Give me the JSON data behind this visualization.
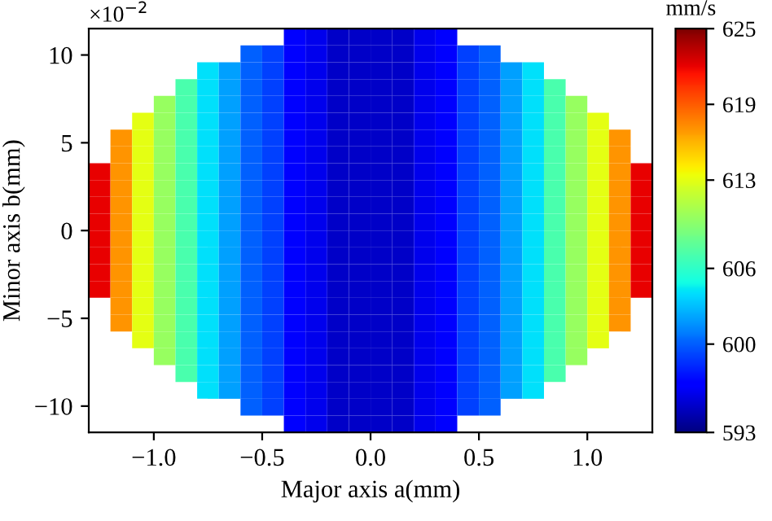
{
  "chart_data": {
    "type": "heatmap",
    "xlabel": "Major axis a(mm)",
    "ylabel": "Minor axis b(mm)",
    "clabel": "mm/s",
    "annotations": [
      "×10$^{−2}$"
    ],
    "x": [
      -1.25,
      -1.15,
      -1.05,
      -0.95,
      -0.85,
      -0.75,
      -0.65,
      -0.55,
      -0.45,
      -0.35,
      -0.25,
      -0.15,
      -0.05,
      0.05,
      0.15,
      0.25,
      0.35,
      0.45,
      0.55,
      0.65,
      0.75,
      0.85,
      0.95,
      1.05,
      1.15,
      1.25
    ],
    "xlim": [
      -1.3,
      1.3
    ],
    "xticks": [
      {
        "value": -1.0,
        "label": "−1.0"
      },
      {
        "value": -0.5,
        "label": "−0.5"
      },
      {
        "value": 0.0,
        "label": "0.0"
      },
      {
        "value": 0.5,
        "label": "0.5"
      },
      {
        "value": 1.0,
        "label": "1.0"
      }
    ],
    "ylim": [
      -11.5,
      11.5
    ],
    "yticks": [
      -10,
      -5,
      0,
      5,
      10
    ],
    "clim": [
      593,
      625
    ],
    "cticks": [
      593,
      600,
      606,
      613,
      619,
      625
    ],
    "cells": [
      [
        null,
        null,
        null,
        null,
        null,
        null,
        null,
        null,
        null,
        597,
        596,
        595,
        595,
        595,
        595,
        596,
        597,
        null,
        null,
        null,
        null,
        null,
        null,
        null,
        null,
        null
      ],
      [
        null,
        null,
        null,
        null,
        null,
        null,
        null,
        600,
        599,
        597,
        596,
        595,
        595,
        595,
        595,
        596,
        597,
        599,
        600,
        null,
        null,
        null,
        null,
        null,
        null,
        null
      ],
      [
        null,
        null,
        null,
        null,
        null,
        604,
        602,
        600,
        599,
        597,
        596,
        595,
        595,
        595,
        595,
        596,
        597,
        599,
        600,
        602,
        604,
        null,
        null,
        null,
        null,
        null
      ],
      [
        null,
        null,
        null,
        null,
        607,
        604,
        602,
        600,
        599,
        597,
        596,
        595,
        595,
        595,
        595,
        596,
        597,
        599,
        600,
        602,
        604,
        607,
        null,
        null,
        null,
        null
      ],
      [
        null,
        null,
        null,
        610,
        607,
        604,
        602,
        600,
        599,
        597,
        596,
        595,
        595,
        595,
        595,
        596,
        597,
        599,
        600,
        602,
        604,
        607,
        610,
        null,
        null,
        null
      ],
      [
        null,
        null,
        613,
        610,
        607,
        604,
        602,
        600,
        599,
        597,
        596,
        595,
        595,
        595,
        595,
        596,
        597,
        599,
        600,
        602,
        604,
        607,
        610,
        613,
        null,
        null
      ],
      [
        null,
        617,
        613,
        610,
        607,
        604,
        602,
        600,
        599,
        597,
        596,
        595,
        595,
        595,
        595,
        596,
        597,
        599,
        600,
        602,
        604,
        607,
        610,
        613,
        617,
        null
      ],
      [
        null,
        617,
        613,
        610,
        607,
        604,
        602,
        600,
        599,
        597,
        596,
        595,
        595,
        595,
        595,
        596,
        597,
        599,
        600,
        602,
        604,
        607,
        610,
        613,
        617,
        null
      ],
      [
        622,
        617,
        613,
        610,
        607,
        604,
        602,
        600,
        599,
        597,
        596,
        595,
        595,
        595,
        595,
        596,
        597,
        599,
        600,
        602,
        604,
        607,
        610,
        613,
        617,
        622
      ],
      [
        622,
        617,
        613,
        610,
        607,
        604,
        602,
        600,
        599,
        597,
        596,
        595,
        595,
        595,
        595,
        596,
        597,
        599,
        600,
        602,
        604,
        607,
        610,
        613,
        617,
        622
      ],
      [
        622,
        617,
        613,
        610,
        607,
        604,
        602,
        600,
        599,
        597,
        596,
        595,
        595,
        595,
        595,
        596,
        597,
        599,
        600,
        602,
        604,
        607,
        610,
        613,
        617,
        622
      ],
      [
        622,
        617,
        613,
        610,
        607,
        604,
        602,
        600,
        599,
        597,
        596,
        595,
        595,
        595,
        595,
        596,
        597,
        599,
        600,
        602,
        604,
        607,
        610,
        613,
        617,
        622
      ],
      [
        622,
        617,
        613,
        610,
        607,
        604,
        602,
        600,
        599,
        597,
        596,
        595,
        595,
        595,
        595,
        596,
        597,
        599,
        600,
        602,
        604,
        607,
        610,
        613,
        617,
        622
      ],
      [
        622,
        617,
        613,
        610,
        607,
        604,
        602,
        600,
        599,
        597,
        596,
        595,
        595,
        595,
        595,
        596,
        597,
        599,
        600,
        602,
        604,
        607,
        610,
        613,
        617,
        622
      ],
      [
        622,
        617,
        613,
        610,
        607,
        604,
        602,
        600,
        599,
        597,
        596,
        595,
        595,
        595,
        595,
        596,
        597,
        599,
        600,
        602,
        604,
        607,
        610,
        613,
        617,
        622
      ],
      [
        622,
        617,
        613,
        610,
        607,
        604,
        602,
        600,
        599,
        597,
        596,
        595,
        595,
        595,
        595,
        596,
        597,
        599,
        600,
        602,
        604,
        607,
        610,
        613,
        617,
        622
      ],
      [
        null,
        617,
        613,
        610,
        607,
        604,
        602,
        600,
        599,
        597,
        596,
        595,
        595,
        595,
        595,
        596,
        597,
        599,
        600,
        602,
        604,
        607,
        610,
        613,
        617,
        null
      ],
      [
        null,
        617,
        613,
        610,
        607,
        604,
        602,
        600,
        599,
        597,
        596,
        595,
        595,
        595,
        595,
        596,
        597,
        599,
        600,
        602,
        604,
        607,
        610,
        613,
        617,
        null
      ],
      [
        null,
        null,
        613,
        610,
        607,
        604,
        602,
        600,
        599,
        597,
        596,
        595,
        595,
        595,
        595,
        596,
        597,
        599,
        600,
        602,
        604,
        607,
        610,
        613,
        null,
        null
      ],
      [
        null,
        null,
        null,
        610,
        607,
        604,
        602,
        600,
        599,
        597,
        596,
        595,
        595,
        595,
        595,
        596,
        597,
        599,
        600,
        602,
        604,
        607,
        610,
        null,
        null,
        null
      ],
      [
        null,
        null,
        null,
        null,
        607,
        604,
        602,
        600,
        599,
        597,
        596,
        595,
        595,
        595,
        595,
        596,
        597,
        599,
        600,
        602,
        604,
        607,
        null,
        null,
        null,
        null
      ],
      [
        null,
        null,
        null,
        null,
        null,
        604,
        602,
        600,
        599,
        597,
        596,
        595,
        595,
        595,
        595,
        596,
        597,
        599,
        600,
        602,
        604,
        null,
        null,
        null,
        null,
        null
      ],
      [
        null,
        null,
        null,
        null,
        null,
        null,
        null,
        600,
        599,
        597,
        596,
        595,
        595,
        595,
        595,
        596,
        597,
        599,
        600,
        null,
        null,
        null,
        null,
        null,
        null,
        null
      ],
      [
        null,
        null,
        null,
        null,
        null,
        null,
        null,
        null,
        null,
        597,
        596,
        595,
        595,
        595,
        595,
        596,
        597,
        null,
        null,
        null,
        null,
        null,
        null,
        null,
        null,
        null
      ]
    ]
  }
}
